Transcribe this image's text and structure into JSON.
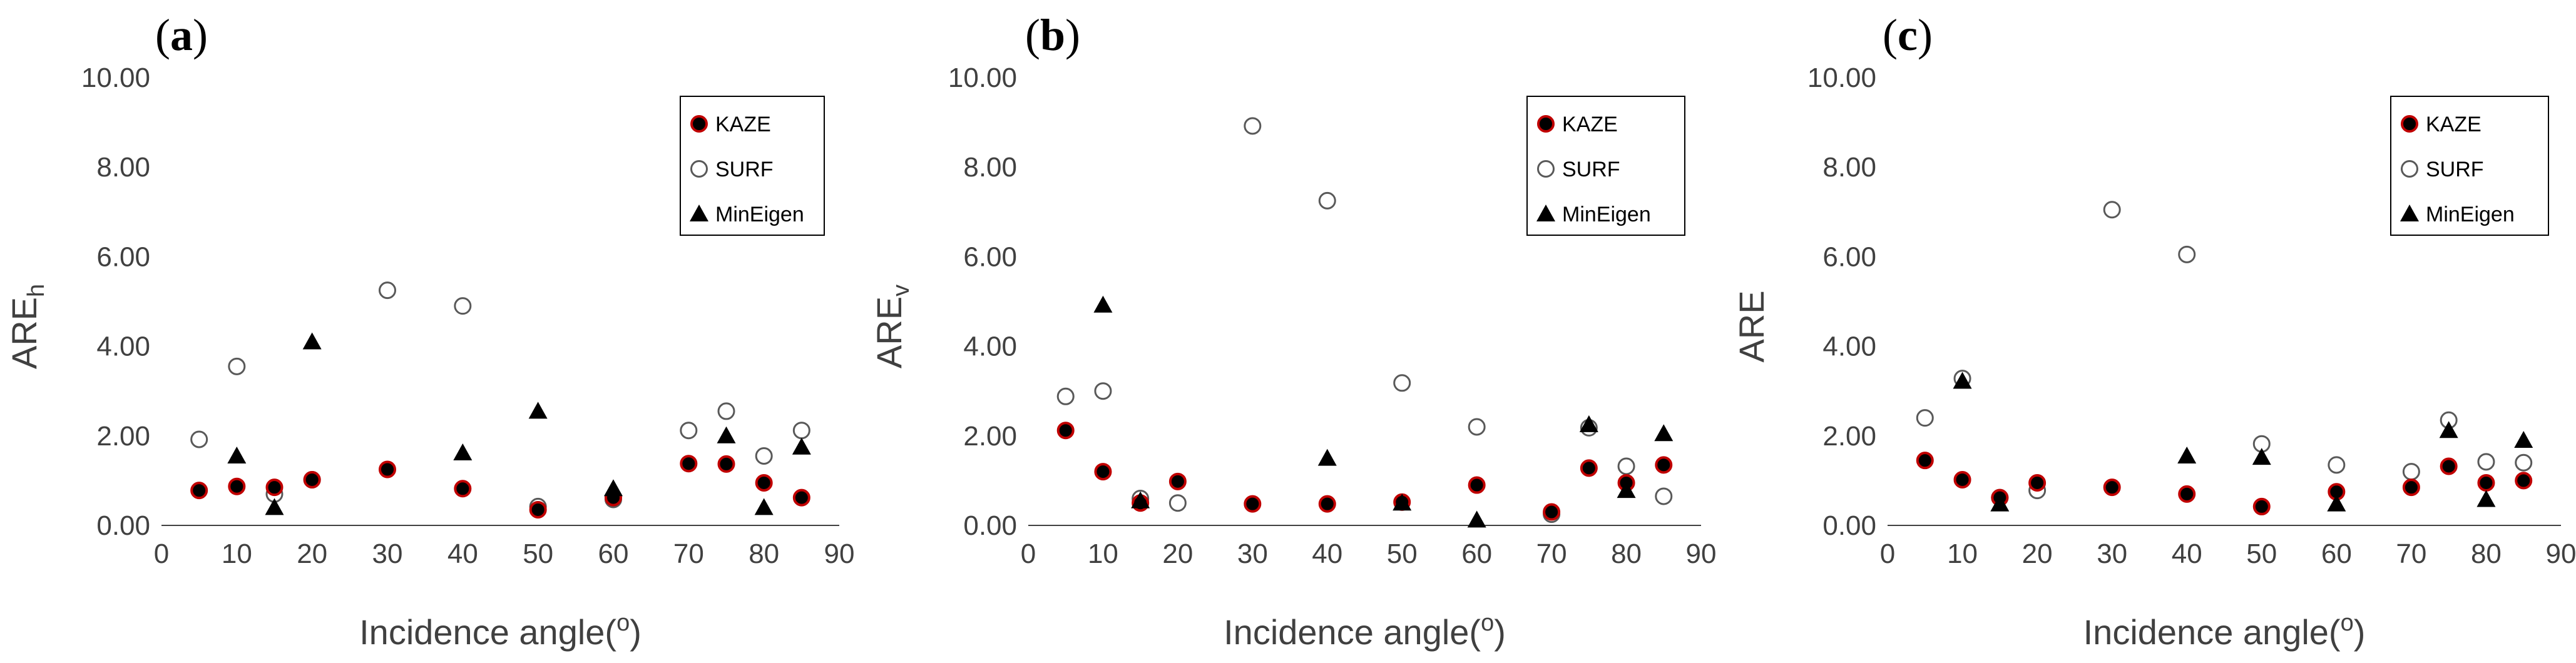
{
  "colors": {
    "kaze_fill": "#000000",
    "kaze_stroke": "#c00000",
    "surf_fill": "#ffffff",
    "surf_stroke": "#595959",
    "mineigen_fill": "#000000",
    "axis": "#404040",
    "text": "#404040"
  },
  "chart_data": [
    {
      "type": "scatter",
      "panel_prefix": "(",
      "panel_letter": "a",
      "panel_suffix": ")",
      "ylabel_main": "ARE",
      "ylabel_sub": "h",
      "xlabel_main": "Incidence angle(",
      "xlabel_sup": "o",
      "xlabel_end": ")",
      "xlim": [
        0,
        90
      ],
      "ylim": [
        0,
        10
      ],
      "xticks": [
        "0",
        "10",
        "20",
        "30",
        "40",
        "50",
        "60",
        "70",
        "80",
        "90"
      ],
      "yticks": [
        "0.00",
        "2.00",
        "4.00",
        "6.00",
        "8.00",
        "10.00"
      ],
      "legend_position": "top-right",
      "series": [
        {
          "name": "KAZE",
          "marker": "filled-circle-red-edge",
          "x": [
            5,
            10,
            15,
            20,
            30,
            40,
            50,
            60,
            70,
            75,
            80,
            85
          ],
          "y": [
            0.78,
            0.87,
            0.85,
            1.02,
            1.25,
            0.82,
            0.35,
            0.62,
            1.38,
            1.37,
            0.95,
            0.62
          ]
        },
        {
          "name": "SURF",
          "marker": "open-circle",
          "x": [
            5,
            10,
            15,
            20,
            30,
            40,
            50,
            60,
            70,
            75,
            80,
            85
          ],
          "y": [
            1.92,
            3.55,
            0.7,
            1.02,
            5.25,
            4.9,
            0.42,
            0.58,
            2.12,
            2.55,
            1.55,
            2.12
          ]
        },
        {
          "name": "MinEigen",
          "marker": "triangle",
          "x": [
            10,
            15,
            20,
            40,
            50,
            60,
            75,
            80,
            85
          ],
          "y": [
            1.55,
            0.4,
            4.1,
            1.62,
            2.55,
            0.82,
            2.0,
            0.4,
            1.75
          ]
        }
      ]
    },
    {
      "type": "scatter",
      "panel_prefix": "(",
      "panel_letter": "b",
      "panel_suffix": ")",
      "ylabel_main": "ARE",
      "ylabel_sub": "v",
      "xlabel_main": "Incidence angle(",
      "xlabel_sup": "o",
      "xlabel_end": ")",
      "xlim": [
        0,
        90
      ],
      "ylim": [
        0,
        10
      ],
      "xticks": [
        "0",
        "10",
        "20",
        "30",
        "40",
        "50",
        "60",
        "70",
        "80",
        "90"
      ],
      "yticks": [
        "0.00",
        "2.00",
        "4.00",
        "6.00",
        "8.00",
        "10.00"
      ],
      "legend_position": "top-right",
      "series": [
        {
          "name": "KAZE",
          "marker": "filled-circle-red-edge",
          "x": [
            5,
            10,
            15,
            20,
            30,
            40,
            50,
            60,
            70,
            75,
            80,
            85
          ],
          "y": [
            2.12,
            1.2,
            0.5,
            0.98,
            0.48,
            0.48,
            0.52,
            0.9,
            0.3,
            1.28,
            0.95,
            1.35
          ]
        },
        {
          "name": "SURF",
          "marker": "open-circle",
          "x": [
            5,
            10,
            15,
            20,
            30,
            40,
            50,
            60,
            70,
            75,
            80,
            85
          ],
          "y": [
            2.88,
            3.0,
            0.6,
            0.5,
            8.92,
            7.25,
            3.18,
            2.2,
            0.25,
            2.18,
            1.32,
            0.65
          ]
        },
        {
          "name": "MinEigen",
          "marker": "triangle",
          "x": [
            10,
            15,
            40,
            50,
            60,
            75,
            80,
            85
          ],
          "y": [
            4.92,
            0.55,
            1.5,
            0.5,
            0.12,
            2.25,
            0.78,
            2.05
          ]
        }
      ]
    },
    {
      "type": "scatter",
      "panel_prefix": "(",
      "panel_letter": "c",
      "panel_suffix": ")",
      "ylabel_main": "ARE",
      "ylabel_sub": "",
      "xlabel_main": "Incidence angle(",
      "xlabel_sup": "o",
      "xlabel_end": ")",
      "xlim": [
        0,
        90
      ],
      "ylim": [
        0,
        10
      ],
      "xticks": [
        "0",
        "10",
        "20",
        "30",
        "40",
        "50",
        "60",
        "70",
        "80",
        "90"
      ],
      "yticks": [
        "0.00",
        "2.00",
        "4.00",
        "6.00",
        "8.00",
        "10.00"
      ],
      "legend_position": "top-right",
      "series": [
        {
          "name": "KAZE",
          "marker": "filled-circle-red-edge",
          "x": [
            5,
            10,
            15,
            20,
            30,
            40,
            50,
            60,
            70,
            75,
            80,
            85
          ],
          "y": [
            1.45,
            1.02,
            0.62,
            0.95,
            0.85,
            0.7,
            0.42,
            0.75,
            0.85,
            1.32,
            0.95,
            1.0
          ]
        },
        {
          "name": "SURF",
          "marker": "open-circle",
          "x": [
            5,
            10,
            15,
            20,
            30,
            40,
            50,
            60,
            70,
            75,
            80,
            85
          ],
          "y": [
            2.4,
            3.28,
            0.62,
            0.78,
            7.05,
            6.05,
            1.82,
            1.35,
            1.2,
            2.35,
            1.42,
            1.4
          ]
        },
        {
          "name": "MinEigen",
          "marker": "triangle",
          "x": [
            10,
            15,
            40,
            50,
            60,
            75,
            80,
            85
          ],
          "y": [
            3.22,
            0.48,
            1.55,
            1.52,
            0.48,
            2.12,
            0.58,
            1.9
          ]
        }
      ]
    }
  ]
}
